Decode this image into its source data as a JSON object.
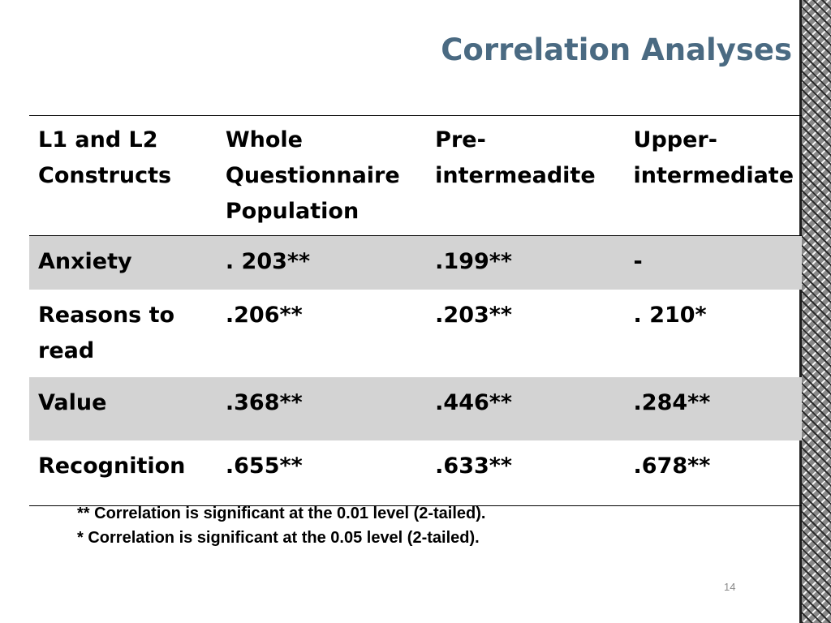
{
  "slide": {
    "title": "Correlation Analyses",
    "page_number": "14"
  },
  "table": {
    "headers": [
      "L1 and L2 Constructs",
      "Whole Questionnaire Population",
      "Pre-intermeadite",
      "Upper-intermediate"
    ],
    "rows": [
      {
        "construct": "Anxiety",
        "whole": ". 203**",
        "pre": ".199**",
        "upper": "-"
      },
      {
        "construct": "Reasons to read",
        "whole": ".206**",
        "pre": ".203**",
        "upper": ". 210*"
      },
      {
        "construct": "Value",
        "whole": ".368**",
        "pre": ".446**",
        "upper": ".284**"
      },
      {
        "construct": "Recognition",
        "whole": ".655**",
        "pre": ".633**",
        "upper": ".678**"
      }
    ]
  },
  "footnotes": [
    "** Correlation is significant at the 0.01 level (2-tailed).",
    "* Correlation is significant at the 0.05 level (2-tailed)."
  ],
  "colors": {
    "title": "#4a6a82",
    "shaded_row": "#d3d3d3"
  }
}
